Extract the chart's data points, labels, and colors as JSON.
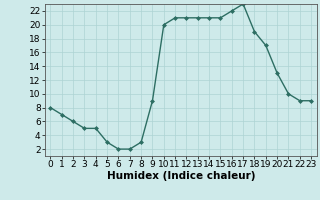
{
  "x": [
    0,
    1,
    2,
    3,
    4,
    5,
    6,
    7,
    8,
    9,
    10,
    11,
    12,
    13,
    14,
    15,
    16,
    17,
    18,
    19,
    20,
    21,
    22,
    23
  ],
  "y": [
    8,
    7,
    6,
    5,
    5,
    3,
    2,
    2,
    3,
    9,
    20,
    21,
    21,
    21,
    21,
    21,
    22,
    23,
    19,
    17,
    13,
    10,
    9,
    9
  ],
  "line_color": "#2d6e63",
  "marker_color": "#2d6e63",
  "bg_color": "#ceeaea",
  "grid_color": "#aed4d4",
  "xlabel": "Humidex (Indice chaleur)",
  "ylim": [
    1,
    23
  ],
  "xlim": [
    -0.5,
    23.5
  ],
  "yticks": [
    2,
    4,
    6,
    8,
    10,
    12,
    14,
    16,
    18,
    20,
    22
  ],
  "xticks": [
    0,
    1,
    2,
    3,
    4,
    5,
    6,
    7,
    8,
    9,
    10,
    11,
    12,
    13,
    14,
    15,
    16,
    17,
    18,
    19,
    20,
    21,
    22,
    23
  ],
  "font_size": 6.5,
  "xlabel_fontsize": 7.5
}
